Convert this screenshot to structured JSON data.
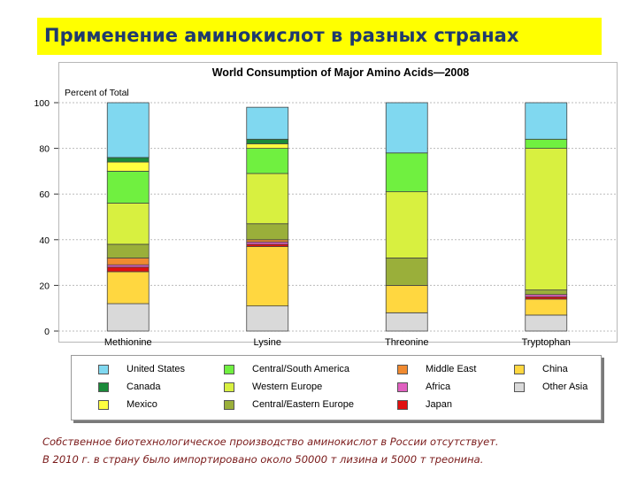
{
  "page_title": "Применение аминокислот в разных странах",
  "footnote": {
    "line1": "Собственное биотехнологическое производство аминокислот в России отсутствует.",
    "line2": "В 2010 г. в страну было импортировано около 50000 т лизина и 5000 т  треонина."
  },
  "chart_data": {
    "type": "bar",
    "stacked": true,
    "title": "World Consumption of Major Amino Acids—2008",
    "ylabel": "Percent of Total",
    "ylim": [
      0,
      100
    ],
    "yticks": [
      "0",
      "20",
      "40",
      "60",
      "80",
      "100"
    ],
    "grid": true,
    "categories": [
      "Methionine",
      "Lysine",
      "Threonine",
      "Tryptophan"
    ],
    "series": [
      {
        "name": "Other Asia",
        "color": "#d9d9d9",
        "values": [
          12,
          11,
          8,
          7
        ]
      },
      {
        "name": "China",
        "color": "#ffd740",
        "values": [
          14,
          26,
          12,
          7
        ]
      },
      {
        "name": "Japan",
        "color": "#e01010",
        "values": [
          2,
          1,
          0,
          1
        ]
      },
      {
        "name": "Africa",
        "color": "#e060c0",
        "values": [
          1,
          1,
          0,
          1
        ]
      },
      {
        "name": "Middle East",
        "color": "#f08a30",
        "values": [
          3,
          1,
          0,
          0
        ]
      },
      {
        "name": "Central/Eastern Europe",
        "color": "#9aaf3a",
        "values": [
          6,
          7,
          12,
          2
        ]
      },
      {
        "name": "Western Europe",
        "color": "#d8f040",
        "values": [
          18,
          22,
          29,
          62
        ]
      },
      {
        "name": "Central/South America",
        "color": "#70f040",
        "values": [
          14,
          11,
          17,
          4
        ]
      },
      {
        "name": "Mexico",
        "color": "#ffff40",
        "values": [
          4,
          2,
          0,
          0
        ]
      },
      {
        "name": "Canada",
        "color": "#1a8a3a",
        "values": [
          2,
          2,
          0,
          0
        ]
      },
      {
        "name": "United States",
        "color": "#80d8f0",
        "values": [
          24,
          14,
          22,
          16
        ]
      }
    ],
    "legend_placement": "bottom",
    "legend_order": [
      "United States",
      "Central/South America",
      "Middle East",
      "China",
      "Canada",
      "Western Europe",
      "Africa",
      "Other Asia",
      "Mexico",
      "Central/Eastern Europe",
      "Japan"
    ]
  }
}
